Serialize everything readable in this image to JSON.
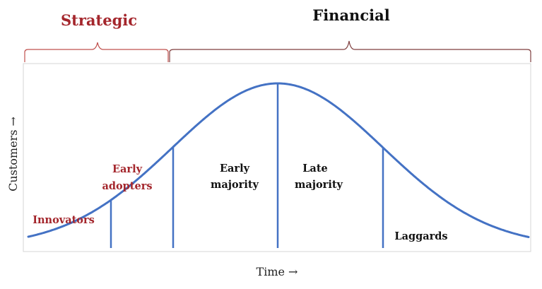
{
  "brackets": {
    "left_label": "Strategic",
    "right_label": "Financial"
  },
  "axes": {
    "y_label": "Customers →",
    "x_label": "Time →"
  },
  "segments": {
    "innovators": "Innovators",
    "early_adopters_line1": "Early",
    "early_adopters_line2": "adopters",
    "early_majority_line1": "Early",
    "early_majority_line2": "majority",
    "late_majority_line1": "Late",
    "late_majority_line2": "majority",
    "laggards": "Laggards"
  },
  "colors": {
    "curve": "#4472C4",
    "strategic": "#A4262C",
    "financial": "#111111",
    "frame": "#D0D0D0",
    "bracket_strategic": "#C0504D",
    "bracket_financial": "#7F3F3F"
  }
}
